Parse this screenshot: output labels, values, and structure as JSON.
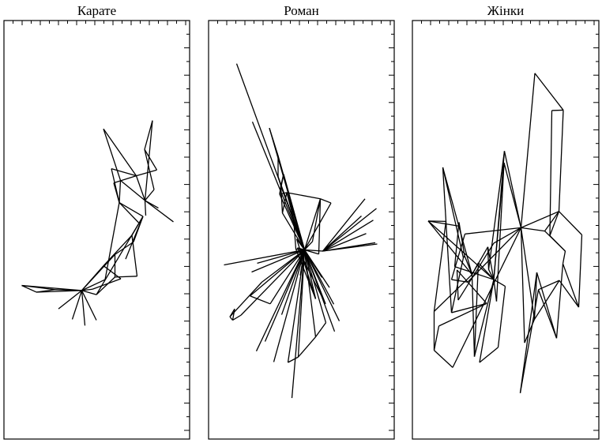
{
  "chart_data": [
    {
      "type": "network",
      "title": "Карате",
      "nodes": [
        [
          22.5,
          0.367
        ],
        [
          41,
          0.351
        ],
        [
          64.5,
          0.357
        ],
        [
          98.5,
          0.355
        ],
        [
          117,
          0.345
        ],
        [
          112,
          0.358
        ],
        [
          128,
          0.381
        ],
        [
          140.5,
          0.387
        ],
        [
          148,
          0.383
        ],
        [
          126,
          0.414
        ],
        [
          140.5,
          0.441
        ],
        [
          154,
          0.43
        ],
        [
          168.5,
          0.389
        ],
        [
          162,
          0.487
        ],
        [
          176,
          0.532
        ],
        [
          164,
          0.471
        ],
        [
          146,
          0.565
        ],
        [
          139,
          0.612
        ],
        [
          147.5,
          0.618
        ],
        [
          167.5,
          0.629
        ],
        [
          178.5,
          0.57
        ],
        [
          195.5,
          0.552
        ],
        [
          190,
          0.596
        ],
        [
          193.5,
          0.643
        ],
        [
          178,
          0.692
        ],
        [
          136,
          0.646
        ],
        [
          188,
          0.761
        ],
        [
          126,
          0.741
        ],
        [
          69,
          0.311
        ],
        [
          86.5,
          0.286
        ],
        [
          102.5,
          0.271
        ],
        [
          117,
          0.284
        ],
        [
          179.5,
          0.534
        ],
        [
          170.5,
          0.517
        ],
        [
          214.5,
          0.519
        ]
      ],
      "edges": [
        [
          0,
          1
        ],
        [
          0,
          3
        ],
        [
          1,
          3
        ],
        [
          1,
          2
        ],
        [
          2,
          3
        ],
        [
          2,
          0
        ],
        [
          3,
          4
        ],
        [
          3,
          5
        ],
        [
          3,
          6
        ],
        [
          3,
          9
        ],
        [
          3,
          10
        ],
        [
          3,
          28
        ],
        [
          3,
          29
        ],
        [
          3,
          30
        ],
        [
          3,
          31
        ],
        [
          4,
          7
        ],
        [
          5,
          8
        ],
        [
          6,
          16
        ],
        [
          7,
          10
        ],
        [
          8,
          9
        ],
        [
          9,
          13
        ],
        [
          10,
          15
        ],
        [
          11,
          14
        ],
        [
          12,
          13
        ],
        [
          13,
          14
        ],
        [
          14,
          15
        ],
        [
          14,
          16
        ],
        [
          16,
          17
        ],
        [
          16,
          18
        ],
        [
          17,
          19
        ],
        [
          18,
          20
        ],
        [
          19,
          20
        ],
        [
          20,
          21
        ],
        [
          20,
          22
        ],
        [
          19,
          23
        ],
        [
          23,
          24
        ],
        [
          22,
          24
        ],
        [
          19,
          27
        ],
        [
          24,
          26
        ],
        [
          25,
          16
        ],
        [
          25,
          19
        ],
        [
          26,
          20
        ],
        [
          27,
          18
        ],
        [
          32,
          20
        ],
        [
          33,
          16
        ],
        [
          34,
          20
        ],
        [
          12,
          7
        ],
        [
          14,
          4
        ]
      ]
    },
    {
      "type": "network",
      "title": "Роман",
      "nodes": [
        [
          35.5,
          0.897
        ],
        [
          55.5,
          0.758
        ],
        [
          77,
          0.743
        ],
        [
          88,
          0.677
        ],
        [
          88,
          0.627
        ],
        [
          91.5,
          0.605
        ],
        [
          95,
          0.633
        ],
        [
          90,
          0.585
        ],
        [
          99,
          0.589
        ],
        [
          107.5,
          0.528
        ],
        [
          110.5,
          0.454
        ],
        [
          112.5,
          0.457
        ],
        [
          111.5,
          0.478
        ],
        [
          121.5,
          0.452
        ],
        [
          139.5,
          0.442
        ],
        [
          131.5,
          0.472
        ],
        [
          143.5,
          0.386
        ],
        [
          153,
          0.362
        ],
        [
          158.5,
          0.322
        ],
        [
          165.5,
          0.282
        ],
        [
          159.5,
          0.257
        ],
        [
          148,
          0.323
        ],
        [
          135.5,
          0.335
        ],
        [
          124.5,
          0.399
        ],
        [
          116,
          0.391
        ],
        [
          109.5,
          0.4
        ],
        [
          92.5,
          0.297
        ],
        [
          71.5,
          0.233
        ],
        [
          60.5,
          0.21
        ],
        [
          82.5,
          0.184
        ],
        [
          100.5,
          0.183
        ],
        [
          113.5,
          0.196
        ],
        [
          135.5,
          0.244
        ],
        [
          148.5,
          0.278
        ],
        [
          105.5,
          0.098
        ],
        [
          78,
          0.323
        ],
        [
          41,
          0.296
        ],
        [
          67.5,
          0.375
        ],
        [
          61.5,
          0.42
        ],
        [
          54.5,
          0.399
        ],
        [
          52.5,
          0.342
        ],
        [
          33,
          0.311
        ],
        [
          30.5,
          0.284
        ],
        [
          19.5,
          0.416
        ],
        [
          27,
          0.292
        ],
        [
          93.5,
          0.54
        ],
        [
          141.5,
          0.574
        ],
        [
          155,
          0.564
        ],
        [
          198,
          0.574
        ],
        [
          208.5,
          0.523
        ],
        [
          193.5,
          0.533
        ],
        [
          199.5,
          0.491
        ],
        [
          211,
          0.469
        ],
        [
          213.5,
          0.466
        ],
        [
          212.5,
          0.551
        ],
        [
          144.5,
          0.449
        ]
      ],
      "edges": [
        [
          0,
          13
        ],
        [
          1,
          13
        ],
        [
          2,
          13
        ],
        [
          3,
          13
        ],
        [
          4,
          13
        ],
        [
          5,
          13
        ],
        [
          6,
          13
        ],
        [
          7,
          13
        ],
        [
          8,
          13
        ],
        [
          9,
          13
        ],
        [
          10,
          13
        ],
        [
          11,
          13
        ],
        [
          12,
          13
        ],
        [
          14,
          13
        ],
        [
          15,
          13
        ],
        [
          16,
          13
        ],
        [
          17,
          13
        ],
        [
          18,
          13
        ],
        [
          19,
          13
        ],
        [
          20,
          13
        ],
        [
          21,
          13
        ],
        [
          22,
          13
        ],
        [
          23,
          13
        ],
        [
          24,
          13
        ],
        [
          25,
          13
        ],
        [
          26,
          13
        ],
        [
          27,
          13
        ],
        [
          28,
          13
        ],
        [
          29,
          13
        ],
        [
          30,
          13
        ],
        [
          31,
          13
        ],
        [
          32,
          13
        ],
        [
          33,
          13
        ],
        [
          34,
          13
        ],
        [
          35,
          13
        ],
        [
          37,
          13
        ],
        [
          38,
          13
        ],
        [
          39,
          13
        ],
        [
          40,
          13
        ],
        [
          43,
          13
        ],
        [
          45,
          13
        ],
        [
          46,
          13
        ],
        [
          47,
          13
        ],
        [
          55,
          13
        ],
        [
          55,
          48
        ],
        [
          55,
          49
        ],
        [
          55,
          50
        ],
        [
          55,
          51
        ],
        [
          55,
          52
        ],
        [
          55,
          53
        ],
        [
          55,
          54
        ],
        [
          36,
          13
        ],
        [
          41,
          44
        ],
        [
          42,
          44
        ],
        [
          44,
          37
        ],
        [
          36,
          42
        ],
        [
          35,
          40
        ],
        [
          41,
          42
        ],
        [
          5,
          6
        ],
        [
          5,
          7
        ],
        [
          6,
          7
        ],
        [
          7,
          8
        ],
        [
          4,
          5
        ],
        [
          3,
          4
        ],
        [
          9,
          10
        ],
        [
          8,
          9
        ],
        [
          2,
          3
        ],
        [
          45,
          5
        ],
        [
          45,
          8
        ],
        [
          46,
          8
        ],
        [
          47,
          46
        ],
        [
          15,
          46
        ],
        [
          14,
          46
        ],
        [
          12,
          22
        ],
        [
          11,
          21
        ],
        [
          10,
          22
        ],
        [
          31,
          32
        ],
        [
          30,
          31
        ],
        [
          33,
          32
        ],
        [
          22,
          23
        ]
      ]
    },
    {
      "type": "network",
      "title": "Жінки",
      "nodes": [
        [
          38.5,
          0.649
        ],
        [
          20,
          0.521
        ],
        [
          49.5,
          0.302
        ],
        [
          27.5,
          0.305
        ],
        [
          42.5,
          0.52
        ],
        [
          58.5,
          0.509
        ],
        [
          59,
          0.518
        ],
        [
          64.5,
          0.433
        ],
        [
          66,
          0.438
        ],
        [
          75.5,
          0.393
        ],
        [
          78.5,
          0.197
        ],
        [
          83.5,
          0.421
        ],
        [
          95.5,
          0.459
        ],
        [
          103,
          0.381
        ],
        [
          96.5,
          0.405
        ],
        [
          106.5,
          0.329
        ],
        [
          116,
          0.66
        ],
        [
          116.5,
          0.688
        ],
        [
          137.5,
          0.505
        ],
        [
          142,
          0.23
        ],
        [
          155,
          0.874
        ],
        [
          157.5,
          0.398
        ],
        [
          154.5,
          0.286
        ],
        [
          167.5,
          0.497
        ],
        [
          185.5,
          0.544
        ],
        [
          176.5,
          0.785
        ],
        [
          191,
          0.786
        ],
        [
          182.5,
          0.241
        ],
        [
          174,
          0.486
        ],
        [
          193.5,
          0.449
        ],
        [
          190.5,
          0.419
        ],
        [
          210.5,
          0.315
        ],
        [
          214.5,
          0.488
        ],
        [
          186,
          0.379
        ],
        [
          159.5,
          0.357
        ],
        [
          136.5,
          0.11
        ],
        [
          51,
          0.171
        ],
        [
          27.5,
          0.212
        ],
        [
          94,
          0.324
        ],
        [
          33.5,
          0.27
        ],
        [
          56.5,
          0.404
        ],
        [
          58,
          0.332
        ],
        [
          103,
          0.468
        ],
        [
          70,
          0.375
        ],
        [
          49.5,
          0.381
        ],
        [
          66.5,
          0.49
        ],
        [
          117.5,
          0.365
        ],
        [
          108.5,
          0.219
        ],
        [
          85,
          0.183
        ],
        [
          53.5,
          0.412
        ]
      ],
      "edges": [
        [
          0,
          4
        ],
        [
          0,
          9
        ],
        [
          0,
          7
        ],
        [
          1,
          4
        ],
        [
          1,
          5
        ],
        [
          1,
          9
        ],
        [
          1,
          13
        ],
        [
          2,
          4
        ],
        [
          2,
          7
        ],
        [
          3,
          4
        ],
        [
          3,
          9
        ],
        [
          5,
          6
        ],
        [
          6,
          8
        ],
        [
          7,
          8
        ],
        [
          8,
          9
        ],
        [
          9,
          10
        ],
        [
          9,
          11
        ],
        [
          9,
          12
        ],
        [
          10,
          13
        ],
        [
          11,
          13
        ],
        [
          12,
          13
        ],
        [
          13,
          14
        ],
        [
          13,
          15
        ],
        [
          13,
          16
        ],
        [
          13,
          17
        ],
        [
          14,
          17
        ],
        [
          15,
          16
        ],
        [
          16,
          18
        ],
        [
          17,
          18
        ],
        [
          18,
          19
        ],
        [
          18,
          20
        ],
        [
          20,
          26
        ],
        [
          25,
          26
        ],
        [
          18,
          24
        ],
        [
          18,
          23
        ],
        [
          23,
          24
        ],
        [
          18,
          22
        ],
        [
          21,
          22
        ],
        [
          21,
          27
        ],
        [
          23,
          29
        ],
        [
          24,
          28
        ],
        [
          28,
          29
        ],
        [
          29,
          30
        ],
        [
          30,
          31
        ],
        [
          31,
          32
        ],
        [
          32,
          24
        ],
        [
          33,
          34
        ],
        [
          34,
          35
        ],
        [
          34,
          27
        ],
        [
          18,
          36
        ],
        [
          36,
          37
        ],
        [
          37,
          39
        ],
        [
          38,
          39
        ],
        [
          38,
          40
        ],
        [
          40,
          41
        ],
        [
          41,
          42
        ],
        [
          42,
          18
        ],
        [
          18,
          43
        ],
        [
          43,
          44
        ],
        [
          44,
          45
        ],
        [
          45,
          18
        ],
        [
          46,
          47
        ],
        [
          47,
          48
        ],
        [
          48,
          13
        ],
        [
          49,
          13
        ],
        [
          49,
          5
        ],
        [
          46,
          13
        ],
        [
          2,
          38
        ],
        [
          3,
          37
        ],
        [
          27,
          30
        ],
        [
          22,
          33
        ],
        [
          28,
          25
        ],
        [
          19,
          22
        ],
        [
          35,
          21
        ],
        [
          11,
          10
        ],
        [
          12,
          14
        ],
        [
          31,
          33
        ],
        [
          26,
          24
        ]
      ]
    }
  ]
}
